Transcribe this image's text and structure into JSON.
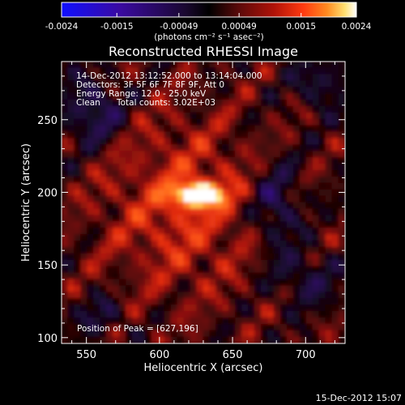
{
  "chart_data": {
    "type": "heatmap",
    "title": "Reconstructed RHESSI Image",
    "xlabel": "Heliocentric X (arcsec)",
    "ylabel": "Heliocentric Y (arcsec)",
    "xlim": [
      533,
      727
    ],
    "ylim": [
      96,
      290
    ],
    "xticks": [
      550,
      600,
      650,
      700
    ],
    "yticks": [
      100,
      150,
      200,
      250
    ],
    "colorbar": {
      "min": -0.0024,
      "max": 0.0024,
      "tick_labels": [
        "-0.0024",
        "-0.0015",
        "-0.00049",
        "0.00049",
        "0.0015",
        "0.0024"
      ],
      "unit_label": "(photons cm⁻² s⁻¹ asec⁻²)",
      "colors": [
        "#1010ff",
        "#3a0aa0",
        "#1a0830",
        "#000000",
        "#5a0a0a",
        "#b01208",
        "#ff3a10",
        "#ff8a20",
        "#ffe070",
        "#ffffff"
      ]
    },
    "annotations": {
      "time_range": "14-Dec-2012 13:12:52.000 to 13:14:04.000",
      "detectors": "Detectors: 3F 5F 6F 7F 8F 9F, Att 0",
      "energy_range": "Energy Range: 12.0 - 25.0 keV",
      "clean": "Clean",
      "total_counts": "Total counts: 3.02E+03",
      "peak": "Position of Peak = [627,196]"
    },
    "peak_position": [
      627,
      196
    ],
    "footer_date": "15-Dec-2012 15:07"
  }
}
